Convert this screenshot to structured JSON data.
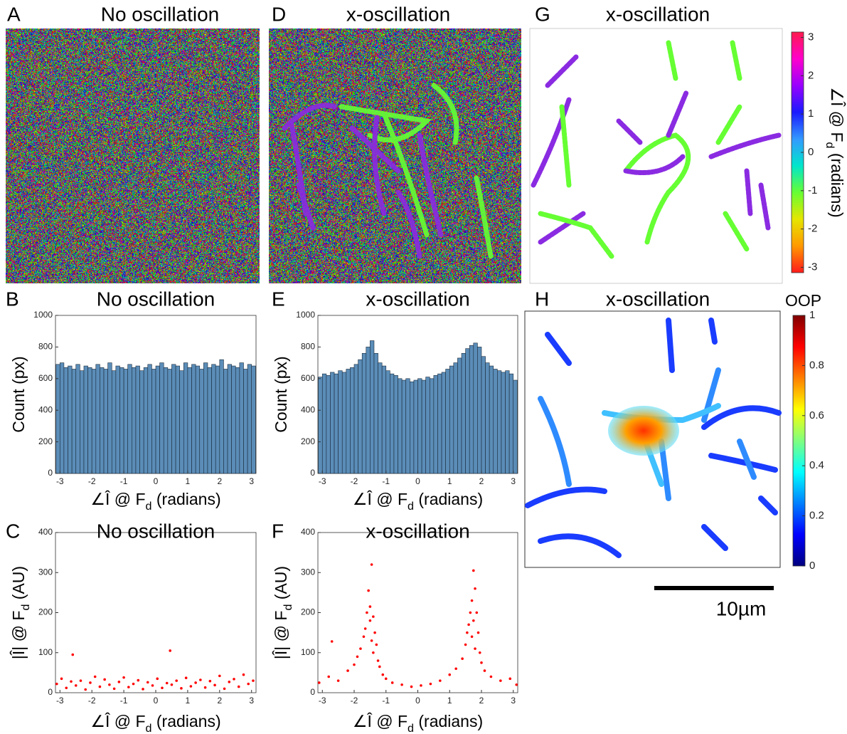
{
  "panels": [
    {
      "letter": "A",
      "title": "No oscillation"
    },
    {
      "letter": "D",
      "title": "x-oscillation"
    },
    {
      "letter": "G",
      "title": "x-oscillation"
    },
    {
      "letter": "H",
      "title": "x-oscillation"
    }
  ],
  "chart_data": [
    {
      "letter": "B",
      "title": "No oscillation",
      "type": "histogram",
      "color": "#5b8db8",
      "xlabel": {
        "pre": "∠Î @ F",
        "sub": "d",
        "post": " (radians)"
      },
      "ylabel": {
        "pre": "Count (px)"
      },
      "bins": [
        -3.125,
        -3,
        -2.875,
        -2.75,
        -2.625,
        -2.5,
        -2.375,
        -2.25,
        -2.125,
        -2,
        -1.875,
        -1.75,
        -1.625,
        -1.5,
        -1.375,
        -1.25,
        -1.125,
        -1,
        -0.875,
        -0.75,
        -0.625,
        -0.5,
        -0.375,
        -0.25,
        -0.125,
        0,
        0.125,
        0.25,
        0.375,
        0.5,
        0.625,
        0.75,
        0.875,
        1,
        1.125,
        1.25,
        1.375,
        1.5,
        1.625,
        1.75,
        1.875,
        2,
        2.125,
        2.25,
        2.375,
        2.5,
        2.625,
        2.75,
        2.875,
        3,
        3.125
      ],
      "values": [
        690,
        700,
        670,
        680,
        660,
        690,
        650,
        680,
        670,
        660,
        690,
        670,
        660,
        700,
        650,
        680,
        670,
        660,
        690,
        670,
        680,
        650,
        670,
        690,
        660,
        680,
        700,
        670,
        660,
        690,
        680,
        650,
        700,
        670,
        690,
        680,
        660,
        700,
        670,
        690,
        680,
        720,
        660,
        690,
        680,
        670,
        700,
        660,
        690,
        680
      ],
      "xlim": [
        -3.14,
        3.14
      ],
      "xticks": [
        -3,
        -2,
        -1,
        0,
        1,
        2,
        3
      ],
      "ylim": [
        0,
        1000
      ],
      "yticks": [
        0,
        200,
        400,
        600,
        800,
        1000
      ]
    },
    {
      "letter": "E",
      "title": "x-oscillation",
      "type": "histogram",
      "color": "#5b8db8",
      "xlabel": {
        "pre": "∠Î @ F",
        "sub": "d",
        "post": " (radians)"
      },
      "ylabel": {
        "pre": "Count (px)"
      },
      "bins": [
        -3.125,
        -3,
        -2.875,
        -2.75,
        -2.625,
        -2.5,
        -2.375,
        -2.25,
        -2.125,
        -2,
        -1.875,
        -1.75,
        -1.625,
        -1.5,
        -1.375,
        -1.25,
        -1.125,
        -1,
        -0.875,
        -0.75,
        -0.625,
        -0.5,
        -0.375,
        -0.25,
        -0.125,
        0,
        0.125,
        0.25,
        0.375,
        0.5,
        0.625,
        0.75,
        0.875,
        1,
        1.125,
        1.25,
        1.375,
        1.5,
        1.625,
        1.75,
        1.875,
        2,
        2.125,
        2.25,
        2.375,
        2.5,
        2.625,
        2.75,
        2.875,
        3,
        3.125
      ],
      "values": [
        610,
        630,
        620,
        640,
        630,
        650,
        640,
        660,
        670,
        690,
        720,
        760,
        800,
        840,
        760,
        700,
        680,
        650,
        630,
        620,
        600,
        590,
        600,
        580,
        590,
        600,
        590,
        610,
        600,
        620,
        630,
        640,
        660,
        680,
        700,
        730,
        760,
        790,
        810,
        825,
        800,
        740,
        700,
        680,
        660,
        650,
        640,
        650,
        630,
        590
      ],
      "xlim": [
        -3.14,
        3.14
      ],
      "xticks": [
        -3,
        -2,
        -1,
        0,
        1,
        2,
        3
      ],
      "ylim": [
        0,
        1000
      ],
      "yticks": [
        0,
        200,
        400,
        600,
        800,
        1000
      ]
    },
    {
      "letter": "C",
      "title": "No oscillation",
      "type": "scatter",
      "color": "#ff0000",
      "xlabel": {
        "pre": "∠Î @ F",
        "sub": "d",
        "post": " (radians)"
      },
      "ylabel": {
        "pre": "|Î| @ F",
        "sub": "d",
        "post": " (AU)"
      },
      "x": [
        -3.1,
        -2.95,
        -2.8,
        -2.65,
        -2.6,
        -2.5,
        -2.35,
        -2.2,
        -2.05,
        -1.9,
        -1.75,
        -1.6,
        -1.45,
        -1.3,
        -1.15,
        -1.0,
        -0.85,
        -0.7,
        -0.55,
        -0.4,
        -0.25,
        -0.1,
        0.05,
        0.2,
        0.35,
        0.45,
        0.5,
        0.65,
        0.8,
        0.95,
        1.1,
        1.25,
        1.4,
        1.55,
        1.7,
        1.85,
        2.0,
        2.15,
        2.3,
        2.45,
        2.6,
        2.75,
        2.9,
        3.05
      ],
      "y": [
        22,
        35,
        12,
        28,
        95,
        18,
        30,
        8,
        25,
        40,
        15,
        33,
        20,
        10,
        27,
        38,
        14,
        22,
        31,
        9,
        26,
        18,
        35,
        12,
        24,
        105,
        20,
        30,
        11,
        37,
        16,
        25,
        32,
        13,
        29,
        19,
        42,
        10,
        27,
        34,
        15,
        45,
        22,
        30
      ],
      "xlim": [
        -3.14,
        3.14
      ],
      "xticks": [
        -3,
        -2,
        -1,
        0,
        1,
        2,
        3
      ],
      "ylim": [
        0,
        400
      ],
      "yticks": [
        0,
        100,
        200,
        300,
        400
      ]
    },
    {
      "letter": "F",
      "title": "x-oscillation",
      "type": "scatter",
      "color": "#ff0000",
      "xlabel": {
        "pre": "∠Î @ F",
        "sub": "d",
        "post": " (radians)"
      },
      "ylabel": {
        "pre": "|Î| @ F",
        "sub": "d",
        "post": " (AU)"
      },
      "x": [
        -3.1,
        -2.8,
        -2.5,
        -2.2,
        -2.0,
        -1.9,
        -1.8,
        -1.7,
        -1.65,
        -1.6,
        -1.55,
        -1.5,
        -1.5,
        -1.45,
        -1.45,
        -1.4,
        -1.4,
        -1.35,
        -1.3,
        -1.25,
        -1.2,
        -1.1,
        -1.0,
        -0.8,
        -0.5,
        -0.2,
        0.1,
        0.4,
        0.7,
        1.0,
        1.2,
        1.4,
        1.5,
        1.55,
        1.6,
        1.65,
        1.7,
        1.7,
        1.75,
        1.75,
        1.8,
        1.8,
        1.85,
        1.9,
        1.95,
        2.0,
        2.1,
        2.3,
        2.6,
        2.9,
        3.1,
        -2.7
      ],
      "y": [
        25,
        40,
        30,
        55,
        70,
        90,
        110,
        140,
        160,
        200,
        255,
        215,
        180,
        320,
        130,
        190,
        100,
        150,
        120,
        80,
        65,
        45,
        35,
        25,
        20,
        15,
        18,
        22,
        30,
        45,
        60,
        85,
        120,
        150,
        170,
        200,
        230,
        140,
        305,
        180,
        260,
        110,
        200,
        150,
        100,
        75,
        55,
        40,
        30,
        35,
        20,
        128
      ],
      "xlim": [
        -3.14,
        3.14
      ],
      "xticks": [
        -3,
        -2,
        -1,
        0,
        1,
        2,
        3
      ],
      "ylim": [
        0,
        400
      ],
      "yticks": [
        0,
        100,
        200,
        300,
        400
      ]
    }
  ],
  "colorbars": [
    {
      "label": {
        "pre": "∠Î @ F",
        "sub": "d",
        "post": " (radians)"
      },
      "lim": [
        -3.14,
        3.14
      ],
      "ticks": [
        -3,
        -2,
        -1,
        0,
        1,
        2,
        3
      ],
      "colors": [
        "#ff1a1a",
        "#ff9900",
        "#e6e600",
        "#66ff33",
        "#00e6cc",
        "#3399ff",
        "#1a1aff",
        "#9900ff",
        "#ff00cc",
        "#ff1a4d"
      ]
    },
    {
      "title": "OOP",
      "lim": [
        0,
        1
      ],
      "ticks": [
        0,
        0.2,
        0.4,
        0.6,
        0.8,
        1
      ],
      "colors": [
        "#00007f",
        "#0000ff",
        "#007fff",
        "#00ffff",
        "#7fff7f",
        "#ffff00",
        "#ff7f00",
        "#ff0000",
        "#7f0000"
      ]
    }
  ],
  "scale_bar": {
    "label": "10µm"
  }
}
